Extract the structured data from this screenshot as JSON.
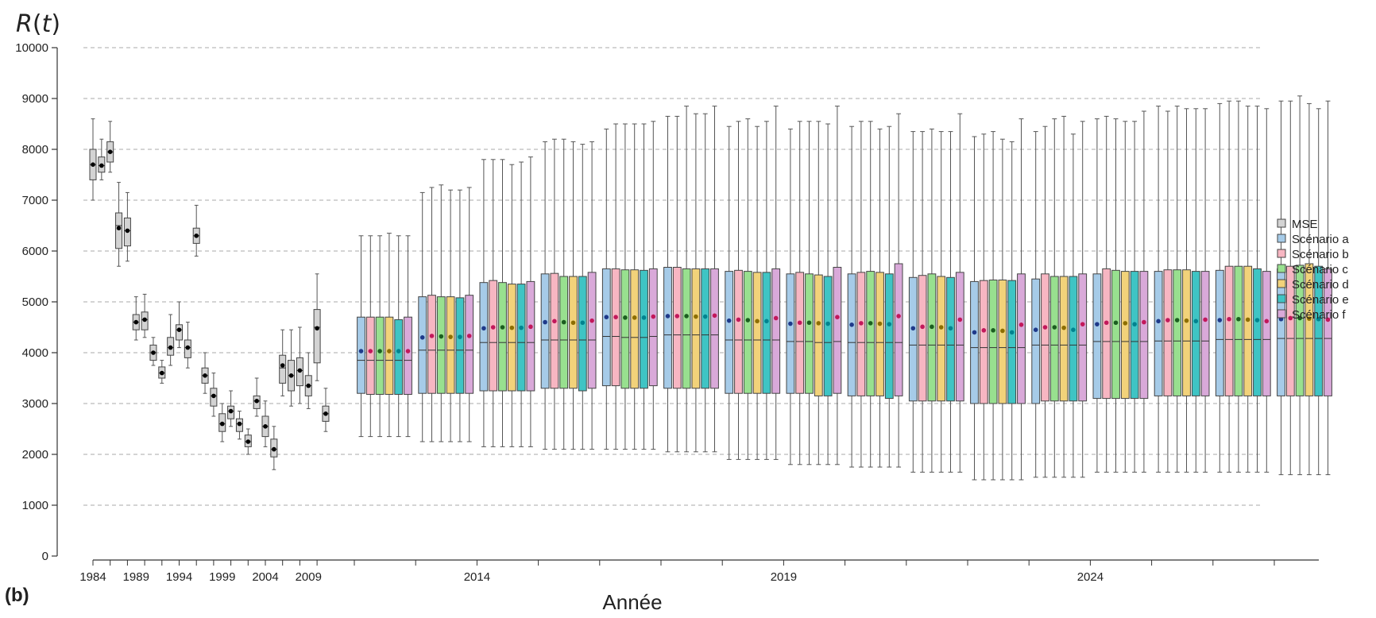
{
  "panel_label": "(b)",
  "chart_data": {
    "type": "box",
    "title": "",
    "ylabel": "R(t)",
    "xlabel": "Année",
    "ylim": [
      0,
      10000
    ],
    "yticks": [
      0,
      1000,
      2000,
      3000,
      4000,
      5000,
      6000,
      7000,
      8000,
      9000,
      10000
    ],
    "xtick_labels": [
      "1984",
      "1989",
      "1994",
      "1999",
      "2004",
      "2009",
      "2014",
      "2019",
      "2024"
    ],
    "grid": "horizontal dashed",
    "legend_position": "right",
    "colors": {
      "MSE": "#d3d3d3",
      "Scénario a": "#a6cbe8",
      "Scénario b": "#f7b6c2",
      "Scénario c": "#98e08f",
      "Scénario d": "#f2d27a",
      "Scénario e": "#3fc4c4",
      "Scénario f": "#d9a9d9"
    },
    "legend": [
      "MSE",
      "Scénario a",
      "Scénario b",
      "Scénario c",
      "Scénario d",
      "Scénario e",
      "Scénario f"
    ],
    "historical": {
      "name": "MSE",
      "years": [
        1984,
        1985,
        1986,
        1987,
        1988,
        1989,
        1990,
        1991,
        1992,
        1993,
        1994,
        1995,
        1996,
        1997,
        1998,
        1999,
        2000,
        2001,
        2002,
        2003,
        2004,
        2005,
        2006,
        2007,
        2008,
        2009,
        2010,
        2011
      ],
      "min": [
        7000,
        7400,
        7550,
        5700,
        5800,
        4250,
        4300,
        3750,
        3400,
        3750,
        4100,
        3700,
        5900,
        3200,
        2750,
        2250,
        2550,
        2300,
        2000,
        2750,
        2150,
        1700,
        3150,
        2950,
        3000,
        2900,
        3450,
        2450
      ],
      "q1": [
        7400,
        7550,
        7750,
        6050,
        6100,
        4450,
        4450,
        3850,
        3500,
        3950,
        4250,
        3900,
        6150,
        3400,
        2950,
        2450,
        2700,
        2450,
        2150,
        2900,
        2350,
        1950,
        3400,
        3250,
        3350,
        3150,
        3800,
        2650
      ],
      "median": [
        7700,
        7680,
        7950,
        6500,
        6400,
        4600,
        4650,
        4000,
        3600,
        4100,
        4450,
        4100,
        6300,
        3550,
        3150,
        2600,
        2850,
        2600,
        2250,
        3050,
        2550,
        2100,
        3700,
        3550,
        3650,
        3350,
        4500,
        2800
      ],
      "q3": [
        8000,
        7850,
        8150,
        6750,
        6650,
        4750,
        4800,
        4150,
        3720,
        4300,
        4550,
        4250,
        6450,
        3700,
        3300,
        2800,
        2950,
        2700,
        2380,
        3150,
        2750,
        2300,
        3950,
        3850,
        3900,
        3550,
        4850,
        2950
      ],
      "max": [
        8600,
        8200,
        8550,
        7350,
        7150,
        5100,
        5150,
        4300,
        3850,
        4750,
        5000,
        4600,
        6900,
        4000,
        3600,
        3000,
        3250,
        2850,
        2500,
        3500,
        3050,
        2550,
        4450,
        4450,
        4500,
        4000,
        5550,
        3300
      ],
      "mean": [
        7700,
        7680,
        7950,
        6450,
        6400,
        4600,
        4650,
        4000,
        3600,
        4100,
        4450,
        4100,
        6300,
        3550,
        3150,
        2600,
        2850,
        2600,
        2250,
        3050,
        2550,
        2100,
        3750,
        3550,
        3650,
        3350,
        4480,
        2800
      ]
    },
    "projection": {
      "years": [
        2012,
        2013,
        2014,
        2015,
        2016,
        2017,
        2018,
        2019,
        2020,
        2021,
        2022,
        2023,
        2024,
        2025,
        2026,
        2027
      ],
      "series": [
        {
          "name": "Scénario a",
          "min": [
            2350,
            2250,
            2150,
            2100,
            2100,
            2050,
            1900,
            1800,
            1750,
            1650,
            1500,
            1550,
            1650,
            1650,
            1650,
            1600
          ],
          "q1": [
            3200,
            3200,
            3250,
            3300,
            3350,
            3300,
            3200,
            3200,
            3150,
            3050,
            3000,
            3000,
            3100,
            3150,
            3150,
            3150
          ],
          "median": [
            3850,
            4050,
            4200,
            4250,
            4320,
            4350,
            4250,
            4220,
            4200,
            4150,
            4100,
            4150,
            4220,
            4230,
            4260,
            4280
          ],
          "q3": [
            4700,
            5100,
            5380,
            5550,
            5650,
            5680,
            5600,
            5550,
            5550,
            5480,
            5400,
            5450,
            5550,
            5600,
            5620,
            5650
          ],
          "max": [
            6300,
            7150,
            7800,
            8150,
            8400,
            8650,
            8450,
            8400,
            8450,
            8350,
            8250,
            8350,
            8600,
            8850,
            8900,
            8950
          ],
          "mean": [
            4030,
            4300,
            4480,
            4600,
            4700,
            4720,
            4630,
            4570,
            4550,
            4480,
            4400,
            4450,
            4560,
            4620,
            4640,
            4660
          ]
        },
        {
          "name": "Scénario b",
          "min": [
            2350,
            2250,
            2150,
            2100,
            2100,
            2050,
            1900,
            1800,
            1750,
            1650,
            1500,
            1550,
            1650,
            1650,
            1650,
            1600
          ],
          "q1": [
            3180,
            3200,
            3250,
            3300,
            3350,
            3300,
            3200,
            3200,
            3150,
            3050,
            3000,
            3050,
            3100,
            3150,
            3150,
            3150
          ],
          "median": [
            3850,
            4050,
            4200,
            4250,
            4320,
            4350,
            4250,
            4220,
            4200,
            4150,
            4100,
            4150,
            4220,
            4230,
            4260,
            4280
          ],
          "q3": [
            4700,
            5130,
            5420,
            5560,
            5650,
            5680,
            5620,
            5580,
            5580,
            5520,
            5420,
            5550,
            5650,
            5630,
            5700,
            5700
          ],
          "max": [
            6300,
            7250,
            7800,
            8200,
            8500,
            8650,
            8550,
            8550,
            8550,
            8350,
            8300,
            8450,
            8650,
            8750,
            8950,
            8950
          ],
          "mean": [
            4030,
            4330,
            4500,
            4620,
            4700,
            4720,
            4650,
            4590,
            4580,
            4510,
            4440,
            4500,
            4590,
            4640,
            4660,
            4680
          ]
        },
        {
          "name": "Scénario c",
          "min": [
            2350,
            2250,
            2150,
            2100,
            2100,
            2050,
            1900,
            1800,
            1750,
            1650,
            1500,
            1550,
            1650,
            1650,
            1650,
            1600
          ],
          "q1": [
            3180,
            3200,
            3250,
            3300,
            3300,
            3300,
            3200,
            3200,
            3150,
            3050,
            3000,
            3050,
            3100,
            3150,
            3150,
            3150
          ],
          "median": [
            3850,
            4050,
            4200,
            4250,
            4300,
            4350,
            4250,
            4220,
            4200,
            4150,
            4100,
            4150,
            4220,
            4230,
            4260,
            4280
          ],
          "q3": [
            4700,
            5100,
            5380,
            5500,
            5630,
            5650,
            5600,
            5550,
            5600,
            5550,
            5430,
            5500,
            5620,
            5630,
            5700,
            5720
          ],
          "max": [
            6300,
            7300,
            7800,
            8200,
            8500,
            8850,
            8600,
            8550,
            8550,
            8400,
            8350,
            8600,
            8600,
            8850,
            8950,
            9050
          ],
          "mean": [
            4030,
            4320,
            4500,
            4600,
            4690,
            4720,
            4640,
            4590,
            4580,
            4510,
            4440,
            4500,
            4590,
            4640,
            4660,
            4680
          ]
        },
        {
          "name": "Scénario d",
          "min": [
            2350,
            2250,
            2150,
            2100,
            2100,
            2050,
            1900,
            1800,
            1750,
            1650,
            1500,
            1550,
            1650,
            1650,
            1650,
            1600
          ],
          "q1": [
            3180,
            3200,
            3250,
            3300,
            3300,
            3300,
            3200,
            3150,
            3150,
            3050,
            3000,
            3050,
            3100,
            3150,
            3150,
            3150
          ],
          "median": [
            3850,
            4050,
            4200,
            4250,
            4300,
            4350,
            4250,
            4200,
            4200,
            4150,
            4100,
            4150,
            4220,
            4230,
            4260,
            4280
          ],
          "q3": [
            4700,
            5100,
            5350,
            5500,
            5630,
            5650,
            5580,
            5530,
            5580,
            5500,
            5430,
            5500,
            5600,
            5630,
            5700,
            5750
          ],
          "max": [
            6350,
            7200,
            7700,
            8150,
            8500,
            8700,
            8450,
            8550,
            8400,
            8350,
            8200,
            8650,
            8550,
            8800,
            8850,
            8900
          ],
          "mean": [
            4030,
            4310,
            4490,
            4590,
            4690,
            4710,
            4620,
            4580,
            4570,
            4500,
            4430,
            4490,
            4580,
            4630,
            4650,
            4670
          ]
        },
        {
          "name": "Scénario e",
          "min": [
            2350,
            2250,
            2150,
            2100,
            2100,
            2050,
            1900,
            1800,
            1750,
            1650,
            1500,
            1550,
            1650,
            1650,
            1650,
            1600
          ],
          "q1": [
            3180,
            3200,
            3250,
            3250,
            3300,
            3300,
            3200,
            3150,
            3100,
            3050,
            3000,
            3050,
            3100,
            3150,
            3150,
            3150
          ],
          "median": [
            3850,
            4050,
            4200,
            4250,
            4300,
            4350,
            4250,
            4200,
            4200,
            4150,
            4100,
            4150,
            4220,
            4230,
            4260,
            4280
          ],
          "q3": [
            4650,
            5080,
            5350,
            5500,
            5620,
            5650,
            5580,
            5500,
            5550,
            5480,
            5420,
            5500,
            5600,
            5600,
            5650,
            5700
          ],
          "max": [
            6300,
            7200,
            7750,
            8100,
            8500,
            8700,
            8550,
            8500,
            8450,
            8350,
            8150,
            8300,
            8550,
            8800,
            8850,
            8800
          ],
          "mean": [
            4030,
            4310,
            4490,
            4590,
            4690,
            4710,
            4620,
            4570,
            4560,
            4480,
            4400,
            4450,
            4560,
            4620,
            4640,
            4660
          ]
        },
        {
          "name": "Scénario f",
          "min": [
            2350,
            2250,
            2150,
            2100,
            2100,
            2050,
            1900,
            1800,
            1750,
            1650,
            1500,
            1550,
            1650,
            1650,
            1650,
            1600
          ],
          "q1": [
            3180,
            3200,
            3250,
            3300,
            3350,
            3300,
            3200,
            3200,
            3150,
            3050,
            3000,
            3050,
            3100,
            3150,
            3150,
            3150
          ],
          "median": [
            3850,
            4050,
            4200,
            4250,
            4320,
            4350,
            4250,
            4220,
            4200,
            4150,
            4100,
            4150,
            4220,
            4230,
            4260,
            4280
          ],
          "q3": [
            4700,
            5130,
            5400,
            5580,
            5650,
            5650,
            5650,
            5680,
            5750,
            5580,
            5550,
            5550,
            5600,
            5600,
            5600,
            5650
          ],
          "max": [
            6300,
            7250,
            7850,
            8150,
            8550,
            8850,
            8850,
            8850,
            8700,
            8700,
            8600,
            8550,
            8750,
            8800,
            8800,
            8950
          ],
          "mean": [
            4030,
            4330,
            4510,
            4630,
            4710,
            4730,
            4680,
            4700,
            4720,
            4650,
            4550,
            4560,
            4600,
            4650,
            4620,
            4650
          ]
        }
      ]
    }
  }
}
